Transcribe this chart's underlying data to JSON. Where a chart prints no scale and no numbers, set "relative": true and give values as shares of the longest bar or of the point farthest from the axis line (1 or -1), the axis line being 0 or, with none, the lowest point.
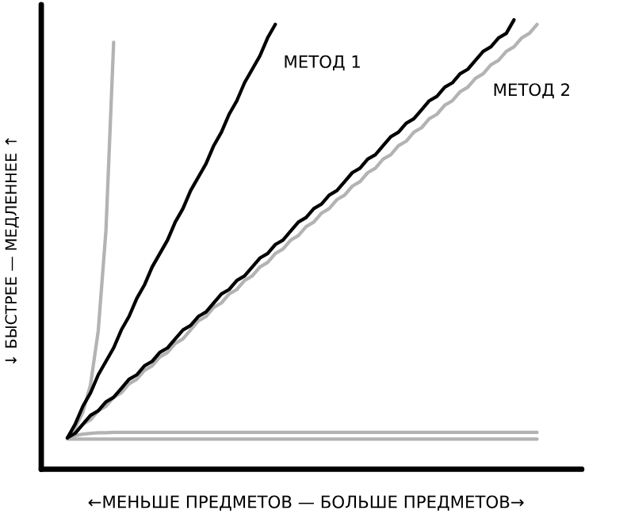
{
  "chart_data": {
    "type": "line",
    "relative": true,
    "xlabel": "←МЕНЬШЕ ПРЕДМЕТОВ — БОЛЬШЕ ПРЕДМЕТОВ→",
    "ylabel": "↓ БЫСТРЕЕ — МЕДЛЕННЕЕ ↑",
    "categories": [
      null,
      null,
      null,
      null,
      null,
      null,
      null,
      null,
      null,
      null,
      null,
      null,
      null,
      null,
      null,
      null,
      null,
      null,
      null,
      null,
      null,
      null,
      null,
      null,
      null,
      null,
      null,
      null,
      null,
      null,
      null,
      null,
      null,
      null,
      null,
      null,
      null,
      null,
      null,
      null,
      null,
      null,
      null,
      null,
      null,
      null,
      null,
      null,
      null,
      null,
      null,
      null,
      null,
      null,
      null,
      null,
      null,
      null,
      null,
      null,
      null,
      null
    ],
    "series": [
      {
        "color": "#b3b3b3",
        "values": [
          0.068,
          0.092,
          0.127,
          0.188,
          0.308,
          0.531,
          0.95,
          null,
          null,
          null,
          null,
          null,
          null,
          null,
          null,
          null,
          null,
          null,
          null,
          null,
          null,
          null,
          null,
          null,
          null,
          null,
          null,
          null,
          null,
          null,
          null,
          null,
          null,
          null,
          null,
          null,
          null,
          null,
          null,
          null,
          null,
          null,
          null,
          null,
          null,
          null,
          null,
          null,
          null,
          null,
          null,
          null,
          null,
          null,
          null,
          null,
          null,
          null,
          null,
          null,
          null,
          null
        ]
      },
      {
        "color": "#b3b3b3",
        "values": [
          0.07,
          0.08,
          0.1,
          0.11,
          0.13,
          0.14,
          0.16,
          0.17,
          0.19,
          0.2,
          0.22,
          0.23,
          0.25,
          0.26,
          0.28,
          0.29,
          0.31,
          0.33,
          0.34,
          0.36,
          0.37,
          0.39,
          0.4,
          0.42,
          0.43,
          0.45,
          0.46,
          0.48,
          0.49,
          0.51,
          0.52,
          0.54,
          0.55,
          0.57,
          0.58,
          0.6,
          0.61,
          0.63,
          0.64,
          0.66,
          0.67,
          0.69,
          0.7,
          0.72,
          0.73,
          0.75,
          0.76,
          0.78,
          0.79,
          0.81,
          0.82,
          0.84,
          0.85,
          0.87,
          0.88,
          0.9,
          0.91,
          0.93,
          0.94,
          0.96,
          0.97,
          0.99
        ]
      },
      {
        "color": "#b3b3b3",
        "values": [
          0.068,
          0.075,
          0.078,
          0.08,
          0.081,
          0.081,
          0.082,
          0.082,
          0.082,
          0.082,
          0.082,
          0.082,
          0.082,
          0.082,
          0.082,
          0.082,
          0.082,
          0.082,
          0.082,
          0.082,
          0.082,
          0.082,
          0.082,
          0.082,
          0.082,
          0.082,
          0.082,
          0.082,
          0.082,
          0.082,
          0.082,
          0.082,
          0.082,
          0.082,
          0.082,
          0.082,
          0.082,
          0.082,
          0.082,
          0.082,
          0.082,
          0.082,
          0.082,
          0.082,
          0.082,
          0.082,
          0.082,
          0.082,
          0.082,
          0.082,
          0.082,
          0.082,
          0.082,
          0.082,
          0.082,
          0.082,
          0.082,
          0.082,
          0.082,
          0.082,
          0.082,
          0.082
        ]
      },
      {
        "color": "#b3b3b3",
        "values": [
          0.067,
          0.067,
          0.067,
          0.067,
          0.067,
          0.067,
          0.067,
          0.067,
          0.067,
          0.067,
          0.067,
          0.067,
          0.067,
          0.067,
          0.067,
          0.067,
          0.067,
          0.067,
          0.067,
          0.067,
          0.067,
          0.067,
          0.067,
          0.067,
          0.067,
          0.067,
          0.067,
          0.067,
          0.067,
          0.067,
          0.067,
          0.067,
          0.067,
          0.067,
          0.067,
          0.067,
          0.067,
          0.067,
          0.067,
          0.067,
          0.067,
          0.067,
          0.067,
          0.067,
          0.067,
          0.067,
          0.067,
          0.067,
          0.067,
          0.067,
          0.067,
          0.067,
          0.067,
          0.067,
          0.067,
          0.067,
          0.067,
          0.067,
          0.067,
          0.067,
          0.067,
          0.067
        ]
      },
      {
        "name": "МЕТОД 1",
        "color": "#000000",
        "values": [
          0.07,
          0.1,
          0.14,
          0.17,
          0.21,
          0.24,
          0.27,
          0.31,
          0.34,
          0.38,
          0.41,
          0.45,
          0.48,
          0.51,
          0.55,
          0.58,
          0.62,
          0.65,
          0.68,
          0.72,
          0.75,
          0.79,
          0.82,
          0.86,
          0.89,
          0.92,
          0.96,
          0.99,
          null,
          null,
          null,
          null,
          null,
          null,
          null,
          null,
          null,
          null,
          null,
          null,
          null,
          null,
          null,
          null,
          null,
          null,
          null,
          null,
          null,
          null,
          null,
          null,
          null,
          null,
          null,
          null,
          null,
          null,
          null,
          null,
          null,
          null
        ]
      },
      {
        "name": "МЕТОД 2",
        "color": "#000000",
        "values": [
          0.07,
          0.08,
          0.1,
          0.12,
          0.13,
          0.15,
          0.16,
          0.18,
          0.2,
          0.21,
          0.23,
          0.24,
          0.26,
          0.27,
          0.29,
          0.31,
          0.32,
          0.34,
          0.35,
          0.37,
          0.39,
          0.4,
          0.42,
          0.43,
          0.45,
          0.47,
          0.48,
          0.5,
          0.51,
          0.53,
          0.55,
          0.56,
          0.58,
          0.59,
          0.61,
          0.62,
          0.64,
          0.66,
          0.67,
          0.69,
          0.7,
          0.72,
          0.74,
          0.75,
          0.77,
          0.78,
          0.8,
          0.82,
          0.83,
          0.85,
          0.86,
          0.88,
          0.89,
          0.91,
          0.93,
          0.94,
          0.96,
          0.97,
          1.0,
          null,
          null,
          null
        ]
      }
    ]
  }
}
